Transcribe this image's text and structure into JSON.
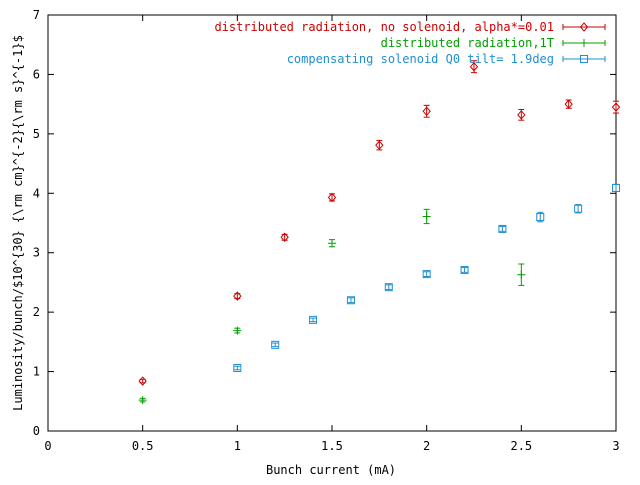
{
  "chart_data": {
    "type": "scatter",
    "xlabel": "Bunch current (mA)",
    "ylabel": "Luminosity/bunch/$10^{30} {\\rm cm}^{-2}{\\rm s}^{-1}$",
    "xlim": [
      0,
      3
    ],
    "ylim": [
      0,
      7
    ],
    "xticks": [
      "0",
      "0.5",
      "1",
      "1.5",
      "2",
      "2.5",
      "3"
    ],
    "yticks": [
      "0",
      "1",
      "2",
      "3",
      "4",
      "5",
      "6",
      "7"
    ],
    "grid": false,
    "legend_position": "top-right",
    "series": [
      {
        "name": "distributed radiation, no solenoid, alpha*=0.01",
        "color": "#cc0000",
        "marker": "diamond",
        "x": [
          0.5,
          1.0,
          1.25,
          1.5,
          1.75,
          2.0,
          2.25,
          2.5,
          2.75,
          3.0
        ],
        "y": [
          0.84,
          2.27,
          3.26,
          3.93,
          4.81,
          5.38,
          6.13,
          5.32,
          5.5,
          5.45
        ],
        "err": [
          0.03,
          0.04,
          0.05,
          0.06,
          0.08,
          0.1,
          0.1,
          0.09,
          0.07,
          0.1
        ]
      },
      {
        "name": "distributed radiation,1T",
        "color": "#00a000",
        "marker": "plus",
        "x": [
          0.5,
          1.0,
          1.5,
          2.0,
          2.5
        ],
        "y": [
          0.52,
          1.69,
          3.16,
          3.61,
          2.63
        ],
        "err": [
          0.03,
          0.04,
          0.06,
          0.12,
          0.18
        ]
      },
      {
        "name": "compensating solenoid Q0 tilt= 1.9deg",
        "color": "#1f8fd0",
        "marker": "square",
        "x": [
          1.0,
          1.2,
          1.4,
          1.6,
          1.8,
          2.0,
          2.2,
          2.4,
          2.6,
          2.8,
          3.0
        ],
        "y": [
          1.06,
          1.45,
          1.87,
          2.2,
          2.42,
          2.64,
          2.71,
          3.4,
          3.6,
          3.74,
          4.09
        ],
        "err": [
          0.03,
          0.03,
          0.03,
          0.04,
          0.04,
          0.04,
          0.04,
          0.04,
          0.08,
          0.07,
          0.06
        ]
      }
    ]
  }
}
